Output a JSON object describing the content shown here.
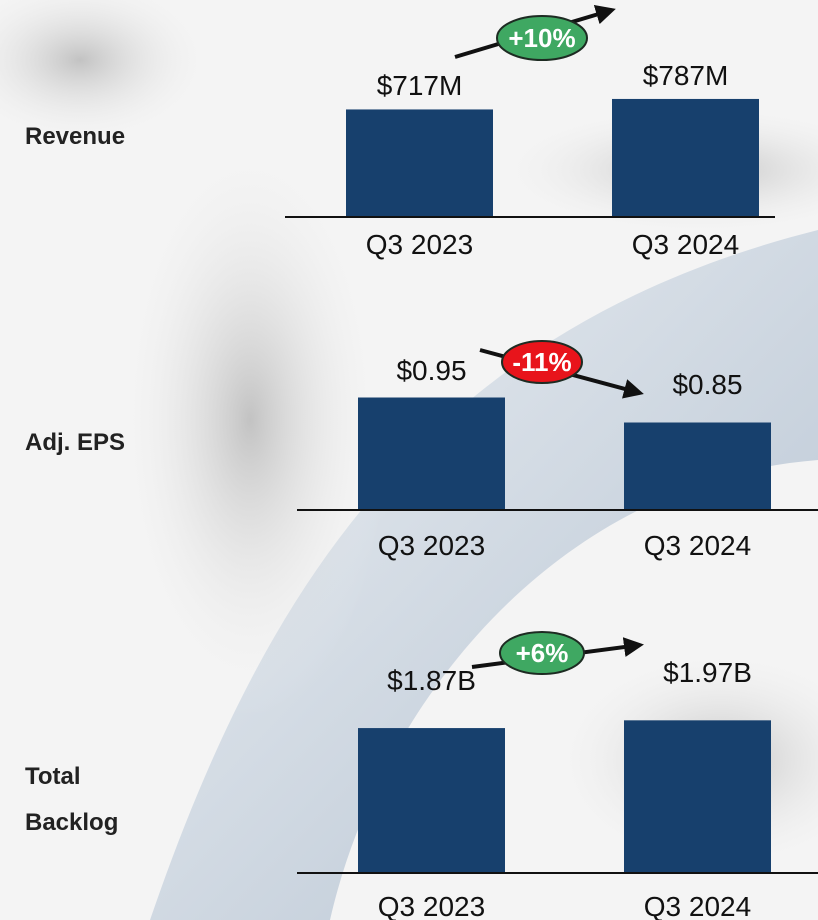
{
  "chart_data": [
    {
      "type": "bar",
      "title": "Revenue",
      "categories": [
        "Q3 2023",
        "Q3 2024"
      ],
      "values": [
        717,
        787
      ],
      "value_labels": [
        "$717M",
        "$787M"
      ],
      "color": "#17406d",
      "ylim": [
        0,
        1000
      ],
      "annotation": "+10%",
      "annotation_color": "#3fa862"
    },
    {
      "type": "bar",
      "title": "Adj. EPS",
      "categories": [
        "Q3 2023",
        "Q3 2024"
      ],
      "values": [
        0.95,
        0.85
      ],
      "value_labels": [
        "$0.95",
        "$0.85"
      ],
      "color": "#17406d",
      "ylim": [
        0.5,
        1.1
      ],
      "annotation": "-11%",
      "annotation_color": "#e8141b"
    },
    {
      "type": "bar",
      "title": "Total Backlog",
      "categories": [
        "Q3 2023",
        "Q3 2024"
      ],
      "values": [
        1.87,
        1.97
      ],
      "value_labels": [
        "$1.87B",
        "$1.97B"
      ],
      "color": "#17406d",
      "ylim": [
        0,
        2
      ],
      "annotation": "+6%",
      "annotation_color": "#3fa862"
    }
  ]
}
